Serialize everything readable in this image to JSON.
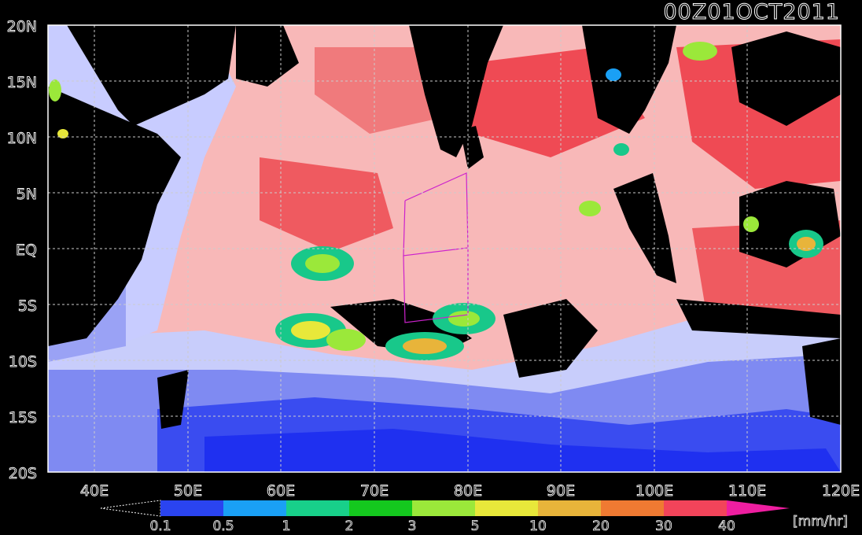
{
  "title": "00Z01OCT2011",
  "map": {
    "lon_range": [
      35,
      120
    ],
    "lat_range": [
      -20,
      20
    ],
    "lat_labels": [
      "20N",
      "15N",
      "10N",
      "5N",
      "EQ",
      "5S",
      "10S",
      "15S",
      "20S"
    ],
    "lon_labels": [
      "40E",
      "50E",
      "60E",
      "70E",
      "80E",
      "90E",
      "100E",
      "110E",
      "120E"
    ]
  },
  "colorbar": {
    "ticks": [
      "0.1",
      "0.5",
      "1",
      "2",
      "3",
      "5",
      "10",
      "20",
      "30",
      "40"
    ],
    "colors": [
      "#2a44f0",
      "#1aa0f5",
      "#18d08a",
      "#14c81e",
      "#9be83a",
      "#e8e83a",
      "#e8b43a",
      "#ef7a32",
      "#f2445a",
      "#ee1ea0"
    ],
    "unit": "[mm/hr]"
  },
  "legend_colors": {
    "land": "#000000",
    "dry_ocean": "#1e2cf0",
    "light": "#c8ccff",
    "pink": "#f8b4b4",
    "red": "#ef3c46"
  }
}
